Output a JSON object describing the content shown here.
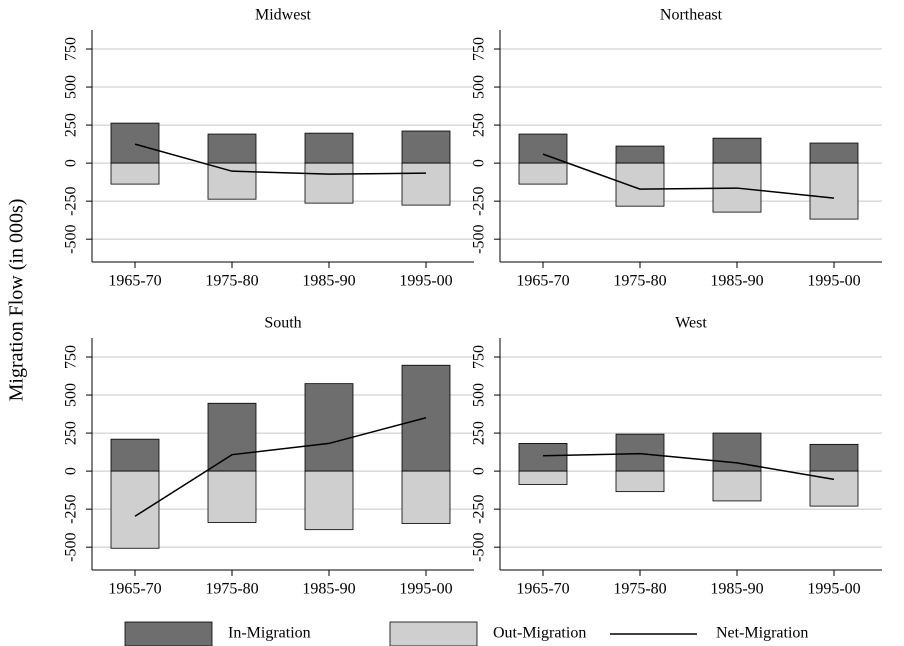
{
  "chart_data": {
    "type": "bar",
    "ylabel": "Migration Flow (in 000s)",
    "categories": [
      "1965-70",
      "1975-80",
      "1985-90",
      "1995-00"
    ],
    "ylim": [
      -650,
      875
    ],
    "yticks": [
      -500,
      -250,
      0,
      250,
      500,
      750
    ],
    "grid": true,
    "series": [
      {
        "name": "In-Migration",
        "color": "#6e6e6e",
        "kind": "bar"
      },
      {
        "name": "Out-Migration",
        "color": "#cfcfcf",
        "kind": "bar"
      },
      {
        "name": "Net-Migration",
        "color": "#000000",
        "kind": "line"
      }
    ],
    "panels": [
      {
        "title": "Midwest",
        "values": [
          [
            263,
            191,
            197,
            211
          ],
          [
            -138,
            -237,
            -263,
            -276
          ],
          [
            125,
            -53,
            -72,
            -66
          ]
        ]
      },
      {
        "title": "Northeast",
        "values": [
          [
            191,
            112,
            164,
            132
          ],
          [
            -138,
            -283,
            -322,
            -368
          ],
          [
            59,
            -171,
            -164,
            -230
          ]
        ]
      },
      {
        "title": "South",
        "values": [
          [
            210,
            446,
            575,
            696
          ],
          [
            -507,
            -338,
            -385,
            -345
          ],
          [
            -297,
            108,
            182,
            351
          ]
        ]
      },
      {
        "title": "West",
        "values": [
          [
            182,
            243,
            250,
            176
          ],
          [
            -88,
            -135,
            -196,
            -230
          ],
          [
            101,
            115,
            54,
            -54
          ]
        ]
      }
    ]
  }
}
